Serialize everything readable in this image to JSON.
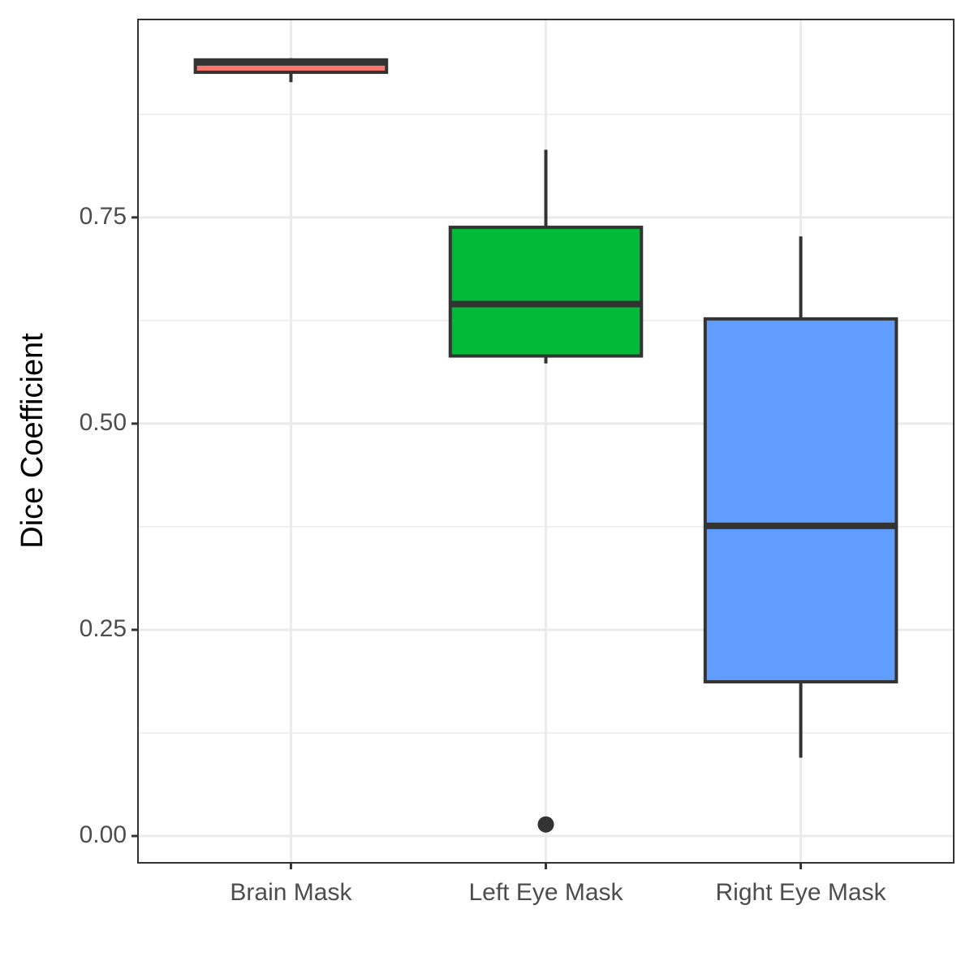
{
  "chart_data": {
    "type": "box",
    "y_label": "Dice Coefficient",
    "categories": [
      "Brain Mask",
      "Left Eye Mask",
      "Right Eye Mask"
    ],
    "colors": [
      "#F8766D",
      "#00BA38",
      "#619CFF"
    ],
    "boxes": [
      {
        "min": 0.914,
        "q1": 0.926,
        "median": 0.938,
        "q3": 0.941,
        "max": 0.943,
        "outliers": []
      },
      {
        "min": 0.573,
        "q1": 0.582,
        "median": 0.645,
        "q3": 0.738,
        "max": 0.832,
        "outliers": [
          0.014
        ]
      },
      {
        "min": 0.095,
        "q1": 0.187,
        "median": 0.376,
        "q3": 0.627,
        "max": 0.727,
        "outliers": []
      }
    ],
    "ylim": [
      -0.0325,
      0.99
    ],
    "yticks": [
      {
        "value": 0,
        "label": "0.00"
      },
      {
        "value": 0.25,
        "label": "0.25"
      },
      {
        "value": 0.5,
        "label": "0.50"
      },
      {
        "value": 0.75,
        "label": "0.75"
      }
    ],
    "minor_yticks": [
      0.125,
      0.375,
      0.625,
      0.875
    ],
    "grid": true
  }
}
